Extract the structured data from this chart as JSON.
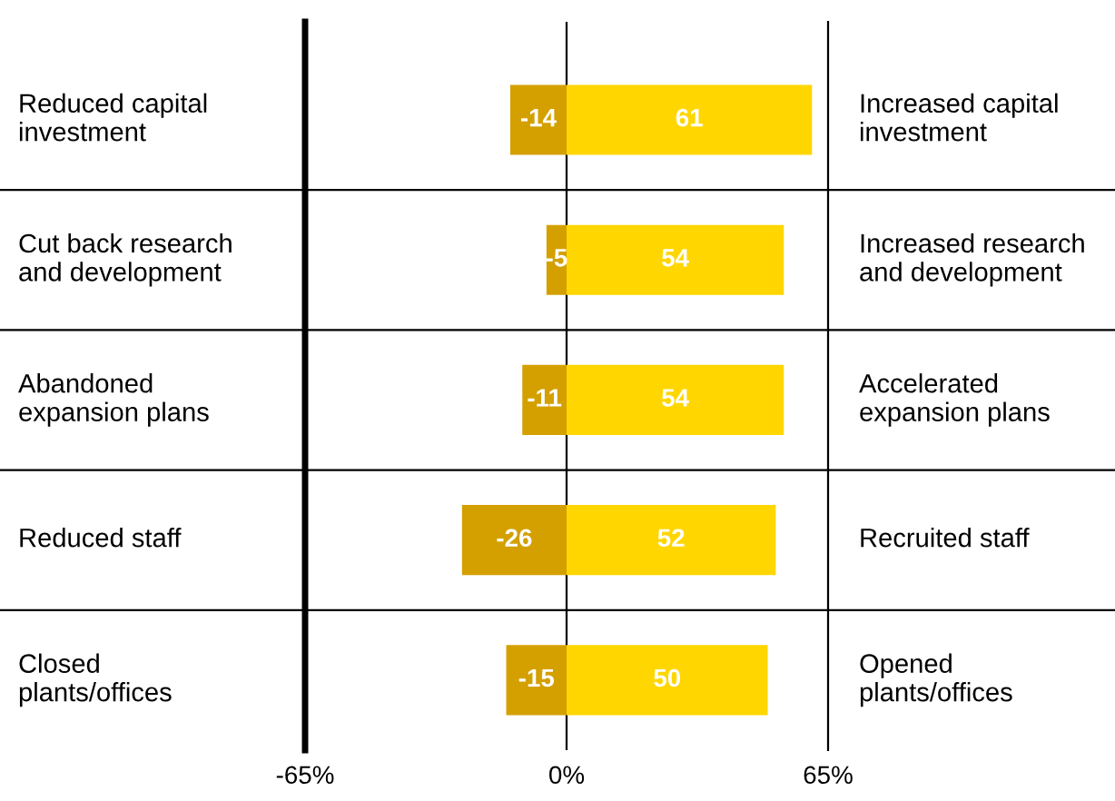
{
  "chart_data": {
    "type": "bar",
    "orientation": "horizontal",
    "categories": [
      "Reduced capital\ninvestment",
      "Cut back research\nand development",
      "Abandoned\nexpansion plans",
      "Reduced staff",
      "Closed\nplants/offices"
    ],
    "annotations": [
      "Increased capital\ninvestment",
      "Increased research\nand development",
      "Accelerated\nexpansion plans",
      "Recruited staff",
      "Opened\nplants/offices"
    ],
    "series": [
      {
        "color": "#d4a000",
        "values": [
          -14,
          -5,
          -11,
          -26,
          -15
        ]
      },
      {
        "color": "#ffd600",
        "values": [
          61,
          54,
          54,
          52,
          50
        ]
      }
    ],
    "xlim": [
      -65,
      65
    ],
    "xticks": [
      {
        "value": -65,
        "label": "-65%"
      },
      {
        "value": 0,
        "label": "0%"
      },
      {
        "value": 65,
        "label": "65%"
      }
    ],
    "ref_lines": [
      {
        "axis": "x",
        "value": 0,
        "color": "#000000"
      }
    ],
    "stacked": true,
    "data_labels": true,
    "grid": "y"
  }
}
